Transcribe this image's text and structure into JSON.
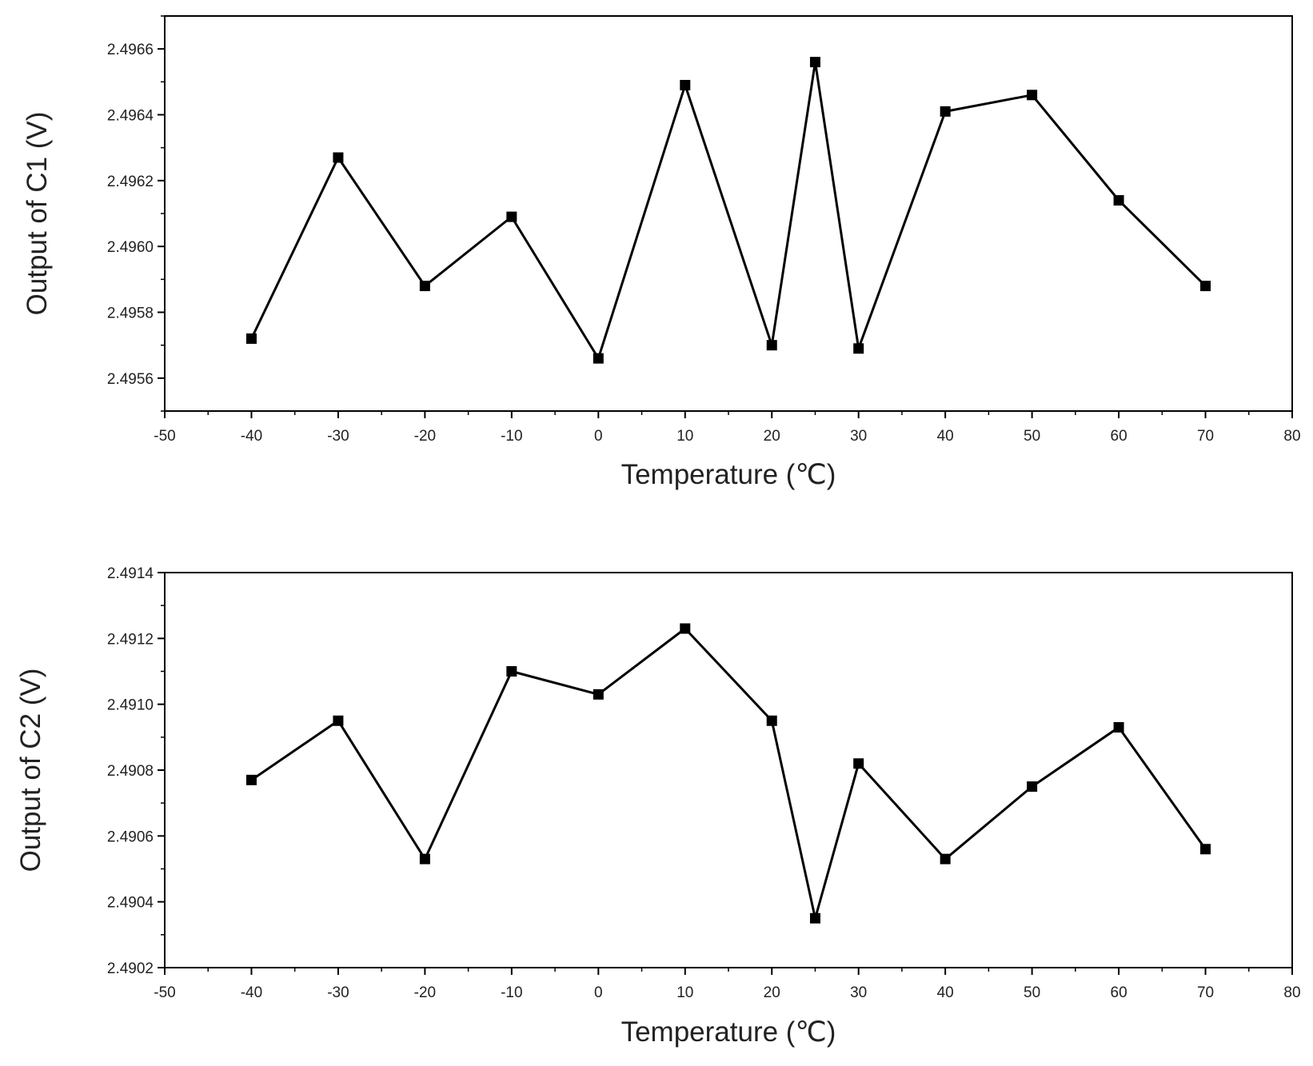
{
  "chart_data": [
    {
      "type": "line",
      "title": "",
      "xlabel": "Temperature (℃)",
      "ylabel": "Output of C1 (V)",
      "xlim": [
        -50,
        80
      ],
      "ylim": [
        2.4955,
        2.4967
      ],
      "xticks": [
        -50,
        -40,
        -30,
        -20,
        -10,
        0,
        10,
        20,
        30,
        40,
        50,
        60,
        70,
        80
      ],
      "yticks": [
        2.4956,
        2.4958,
        2.496,
        2.4962,
        2.4964,
        2.4966
      ],
      "ytick_decimals": 4,
      "grid": false,
      "series": [
        {
          "name": "C1",
          "marker": "square",
          "color": "#000000",
          "x": [
            -40,
            -30,
            -20,
            -10,
            0,
            10,
            20,
            25,
            30,
            40,
            50,
            60,
            70
          ],
          "y": [
            2.49572,
            2.49627,
            2.49588,
            2.49609,
            2.49566,
            2.49649,
            2.4957,
            2.49656,
            2.49569,
            2.49641,
            2.49646,
            2.49614,
            2.49588
          ]
        }
      ]
    },
    {
      "type": "line",
      "title": "",
      "xlabel": "Temperature (℃)",
      "ylabel": "Output of C2 (V)",
      "xlim": [
        -50,
        80
      ],
      "ylim": [
        2.4902,
        2.4914
      ],
      "xticks": [
        -50,
        -40,
        -30,
        -20,
        -10,
        0,
        10,
        20,
        30,
        40,
        50,
        60,
        70,
        80
      ],
      "yticks": [
        2.4902,
        2.4904,
        2.4906,
        2.4908,
        2.491,
        2.4912,
        2.4914
      ],
      "ytick_decimals": 4,
      "grid": false,
      "series": [
        {
          "name": "C2",
          "marker": "square",
          "color": "#000000",
          "x": [
            -40,
            -30,
            -20,
            -10,
            0,
            10,
            20,
            25,
            30,
            40,
            50,
            60,
            70
          ],
          "y": [
            2.49077,
            2.49095,
            2.49053,
            2.4911,
            2.49103,
            2.49123,
            2.49095,
            2.49035,
            2.49082,
            2.49053,
            2.49075,
            2.49093,
            2.49056
          ]
        }
      ]
    }
  ]
}
